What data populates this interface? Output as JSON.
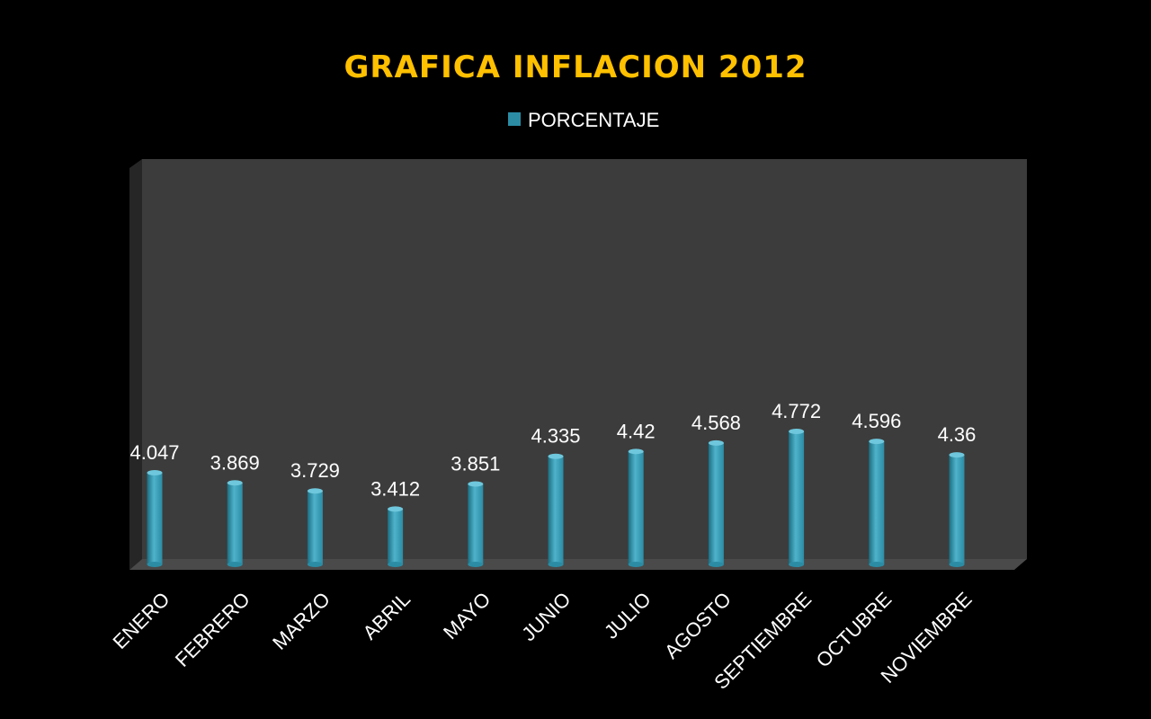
{
  "chart_data": {
    "type": "bar",
    "title": "GRAFICA INFLACION 2012",
    "categories": [
      "ENERO",
      "FEBRERO",
      "MARZO",
      "ABRIL",
      "MAYO",
      "JUNIO",
      "JULIO",
      "AGOSTO",
      "SEPTIEMBRE",
      "OCTUBRE",
      "NOVIEMBRE"
    ],
    "series": [
      {
        "name": "PORCENTAJE",
        "values": [
          4.047,
          3.869,
          3.729,
          3.412,
          3.851,
          4.335,
          4.42,
          4.568,
          4.772,
          4.596,
          4.36
        ],
        "labels": [
          "4.047",
          "3.869",
          "3.729",
          "3.412",
          "3.851",
          "4.335",
          "4.42",
          "4.568",
          "4.772",
          "4.596",
          "4.36"
        ]
      }
    ],
    "xlabel": "",
    "ylabel": "",
    "ylim": [
      0,
      4.772
    ],
    "grid": false,
    "legend_position": "top",
    "colors": {
      "background": "#000000",
      "plot_back": "#3c3c3c",
      "plot_side": "#262626",
      "plot_floor": "#4a4a4a",
      "bar_dark": "#1b6d80",
      "bar_mid": "#2b8ca4",
      "bar_light": "#4fb3cb",
      "bar_top": "#6ec7dc",
      "title": "#ffc000",
      "text": "#ffffff"
    }
  }
}
